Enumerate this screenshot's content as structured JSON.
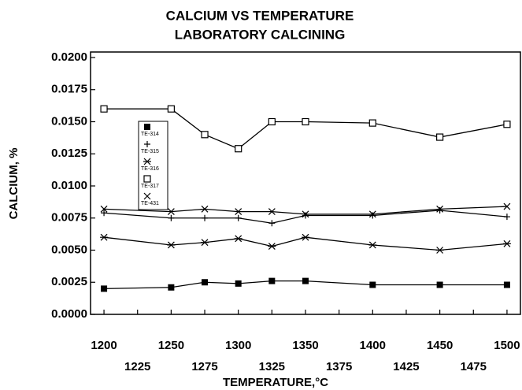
{
  "chart_data": {
    "type": "line",
    "title": "CALCIUM VS TEMPERATURE",
    "subtitle": "LABORATORY CALCINING",
    "x_label": "TEMPERATURE,°C",
    "y_label": "CALCIUM, %",
    "x": [
      1200,
      1250,
      1275,
      1300,
      1325,
      1350,
      1400,
      1450,
      1500
    ],
    "series": [
      {
        "name": "TE-314",
        "color": "#000000",
        "marker": "square-filled",
        "values": [
          0.002,
          0.0021,
          0.0025,
          0.0024,
          0.0026,
          0.0026,
          0.0023,
          0.0023,
          0.0023
        ]
      },
      {
        "name": "TE-315",
        "color": "#000000",
        "marker": "plus",
        "values": [
          0.0079,
          0.0075,
          0.0075,
          0.0075,
          0.0071,
          0.0077,
          0.0077,
          0.0081,
          0.0076
        ]
      },
      {
        "name": "TE-316",
        "color": "#000000",
        "marker": "asterisk",
        "values": [
          0.006,
          0.0054,
          0.0056,
          0.0059,
          0.0053,
          0.006,
          0.0054,
          0.005,
          0.0055
        ]
      },
      {
        "name": "TE-317",
        "color": "#000000",
        "marker": "square-open",
        "values": [
          0.016,
          0.016,
          0.014,
          0.0129,
          0.015,
          0.015,
          0.0149,
          0.0138,
          0.0148
        ]
      },
      {
        "name": "TE-431",
        "color": "#000000",
        "marker": "cross",
        "values": [
          0.0082,
          0.008,
          0.0082,
          0.008,
          0.008,
          0.0078,
          0.0078,
          0.0082,
          0.0084
        ]
      }
    ],
    "xlim": [
      1190,
      1510
    ],
    "ylim": [
      0,
      0.02
    ],
    "xticks": [
      1200,
      1225,
      1250,
      1275,
      1300,
      1325,
      1350,
      1375,
      1400,
      1425,
      1450,
      1475,
      1500
    ],
    "yticks": [
      {
        "value": 0,
        "label": "0.0000"
      },
      {
        "value": 0.0025,
        "label": "0.0025"
      },
      {
        "value": 0.005,
        "label": "0.0050"
      },
      {
        "value": 0.0075,
        "label": "0.0075"
      },
      {
        "value": 0.01,
        "label": "0.0100"
      },
      {
        "value": 0.0125,
        "label": "0.0125"
      },
      {
        "value": 0.015,
        "label": "0.0150"
      },
      {
        "value": 0.0175,
        "label": "0.0175"
      },
      {
        "value": 0.02,
        "label": "0.0200"
      }
    ],
    "grid": false,
    "legend": "upper left"
  }
}
